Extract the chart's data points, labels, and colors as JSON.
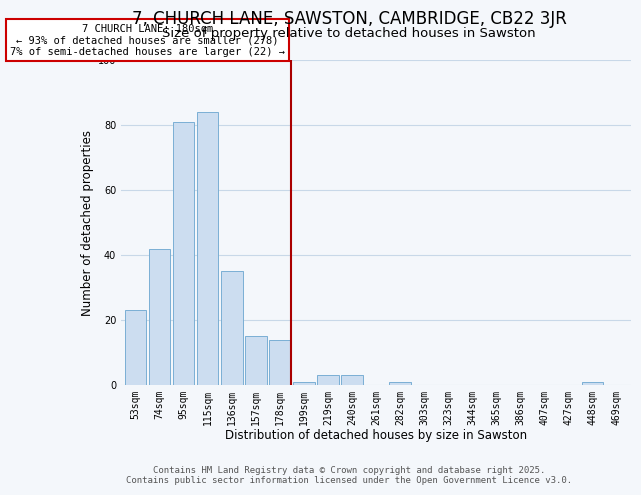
{
  "title": "7, CHURCH LANE, SAWSTON, CAMBRIDGE, CB22 3JR",
  "subtitle": "Size of property relative to detached houses in Sawston",
  "xlabel": "Distribution of detached houses by size in Sawston",
  "ylabel": "Number of detached properties",
  "categories": [
    "53sqm",
    "74sqm",
    "95sqm",
    "115sqm",
    "136sqm",
    "157sqm",
    "178sqm",
    "199sqm",
    "219sqm",
    "240sqm",
    "261sqm",
    "282sqm",
    "303sqm",
    "323sqm",
    "344sqm",
    "365sqm",
    "386sqm",
    "407sqm",
    "427sqm",
    "448sqm",
    "469sqm"
  ],
  "values": [
    23,
    42,
    81,
    84,
    35,
    15,
    14,
    1,
    3,
    3,
    0,
    1,
    0,
    0,
    0,
    0,
    0,
    0,
    0,
    1,
    0
  ],
  "bar_color": "#ccddf0",
  "bar_edge_color": "#7aafd4",
  "highlight_index": 6,
  "highlight_line_color": "#aa0000",
  "annotation_title": "7 CHURCH LANE: 180sqm",
  "annotation_line1": "← 93% of detached houses are smaller (278)",
  "annotation_line2": "7% of semi-detached houses are larger (22) →",
  "annotation_box_color": "#ffffff",
  "annotation_box_edge_color": "#cc0000",
  "ylim": [
    0,
    100
  ],
  "yticks": [
    0,
    20,
    40,
    60,
    80,
    100
  ],
  "footer_line1": "Contains HM Land Registry data © Crown copyright and database right 2025.",
  "footer_line2": "Contains public sector information licensed under the Open Government Licence v3.0.",
  "bg_color": "#f4f7fb",
  "grid_color": "#c8d8e8",
  "title_fontsize": 12,
  "subtitle_fontsize": 9.5,
  "axis_label_fontsize": 8.5,
  "tick_fontsize": 7,
  "footer_fontsize": 6.5
}
